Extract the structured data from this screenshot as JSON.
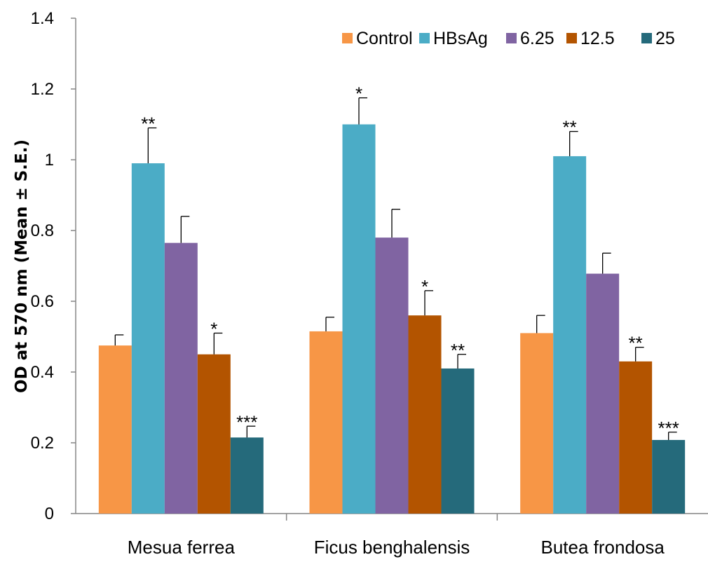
{
  "chart_data": {
    "type": "bar",
    "ylabel": "OD at 570 nm (Mean ± S.E.)",
    "xlabel": "",
    "ylim": [
      0,
      1.4
    ],
    "yticks": [
      0,
      0.2,
      0.4,
      0.6,
      0.8,
      1,
      1.2,
      1.4
    ],
    "ytick_labels": [
      "0",
      "0.2",
      "0.4",
      "0.6",
      "0.8",
      "1",
      "1.2",
      "1.4"
    ],
    "grid": false,
    "legend_position": "top-right",
    "categories": [
      "Mesua ferrea",
      "Ficus benghalensis",
      "Butea frondosa"
    ],
    "series": [
      {
        "name": "Control",
        "color": "#F79646",
        "values": [
          0.475,
          0.515,
          0.51
        ],
        "errors": [
          0.03,
          0.04,
          0.05
        ],
        "annotations": [
          "",
          "",
          ""
        ]
      },
      {
        "name": "HBsAg",
        "color": "#4BACC6",
        "values": [
          0.99,
          1.1,
          1.01
        ],
        "errors": [
          0.1,
          0.075,
          0.07
        ],
        "annotations": [
          "**",
          "*",
          "**"
        ]
      },
      {
        "name": "6.25",
        "color": "#8064A2",
        "values": [
          0.765,
          0.78,
          0.678
        ],
        "errors": [
          0.075,
          0.08,
          0.058
        ],
        "annotations": [
          "",
          "",
          ""
        ]
      },
      {
        "name": "12.5",
        "color": "#B35400",
        "values": [
          0.45,
          0.56,
          0.43
        ],
        "errors": [
          0.06,
          0.07,
          0.04
        ],
        "annotations": [
          "*",
          "*",
          "**"
        ]
      },
      {
        "name": "25",
        "color": "#256A7B",
        "values": [
          0.215,
          0.41,
          0.208
        ],
        "errors": [
          0.032,
          0.04,
          0.022
        ],
        "annotations": [
          "***",
          "**",
          "***"
        ]
      }
    ]
  }
}
